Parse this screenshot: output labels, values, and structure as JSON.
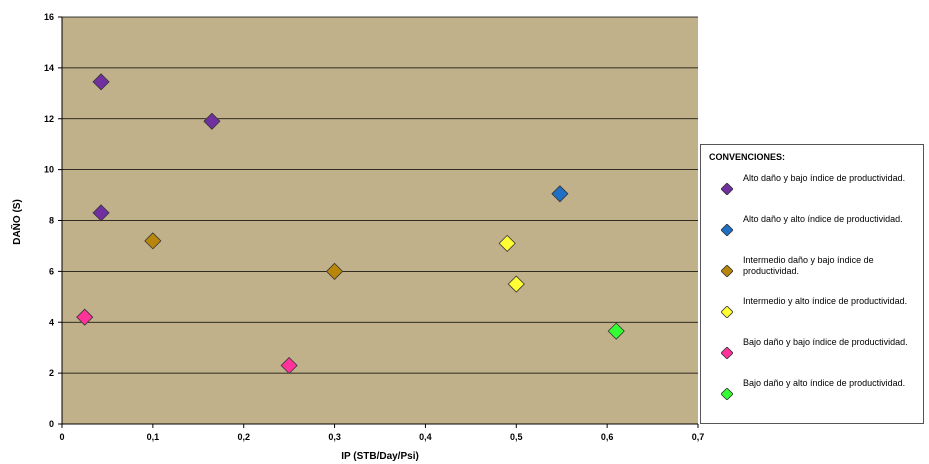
{
  "chart_data": {
    "type": "scatter",
    "title": "",
    "xlabel": "IP (STB/Day/Psi)",
    "ylabel": "DAÑO (S)",
    "xlim": [
      0,
      0.7
    ],
    "ylim": [
      0,
      16
    ],
    "x_ticks": [
      "0",
      "0,1",
      "0,2",
      "0,3",
      "0,4",
      "0,5",
      "0,6",
      "0,7"
    ],
    "y_ticks": [
      "0",
      "2",
      "4",
      "6",
      "8",
      "10",
      "12",
      "14",
      "16"
    ],
    "grid": "horizontal",
    "plot_background": "#c1b18a",
    "legend_position": "right",
    "legend_title": "CONVENCIONES:",
    "series": [
      {
        "name": "Alto daño y bajo índice de productividad.",
        "color": "#7030a0",
        "points": [
          [
            0.043,
            13.45
          ],
          [
            0.165,
            11.9
          ],
          [
            0.043,
            8.3
          ]
        ]
      },
      {
        "name": "Alto daño y alto índice de productividad.",
        "color": "#1f6fc5",
        "points": [
          [
            0.548,
            9.05
          ]
        ]
      },
      {
        "name": "Intermedio daño y bajo índice de productividad.",
        "color": "#b8860b",
        "points": [
          [
            0.1,
            7.2
          ],
          [
            0.3,
            6.0
          ]
        ]
      },
      {
        "name": "Intermedio y alto índice de productividad.",
        "color": "#ffff33",
        "points": [
          [
            0.49,
            7.1
          ],
          [
            0.5,
            5.5
          ]
        ]
      },
      {
        "name": "Bajo daño y bajo índice de productividad.",
        "color": "#ff3399",
        "points": [
          [
            0.025,
            4.2
          ],
          [
            0.25,
            2.3
          ]
        ]
      },
      {
        "name": "Bajo daño y alto índice de productividad.",
        "color": "#33ff33",
        "points": [
          [
            0.61,
            3.65
          ]
        ]
      }
    ]
  }
}
